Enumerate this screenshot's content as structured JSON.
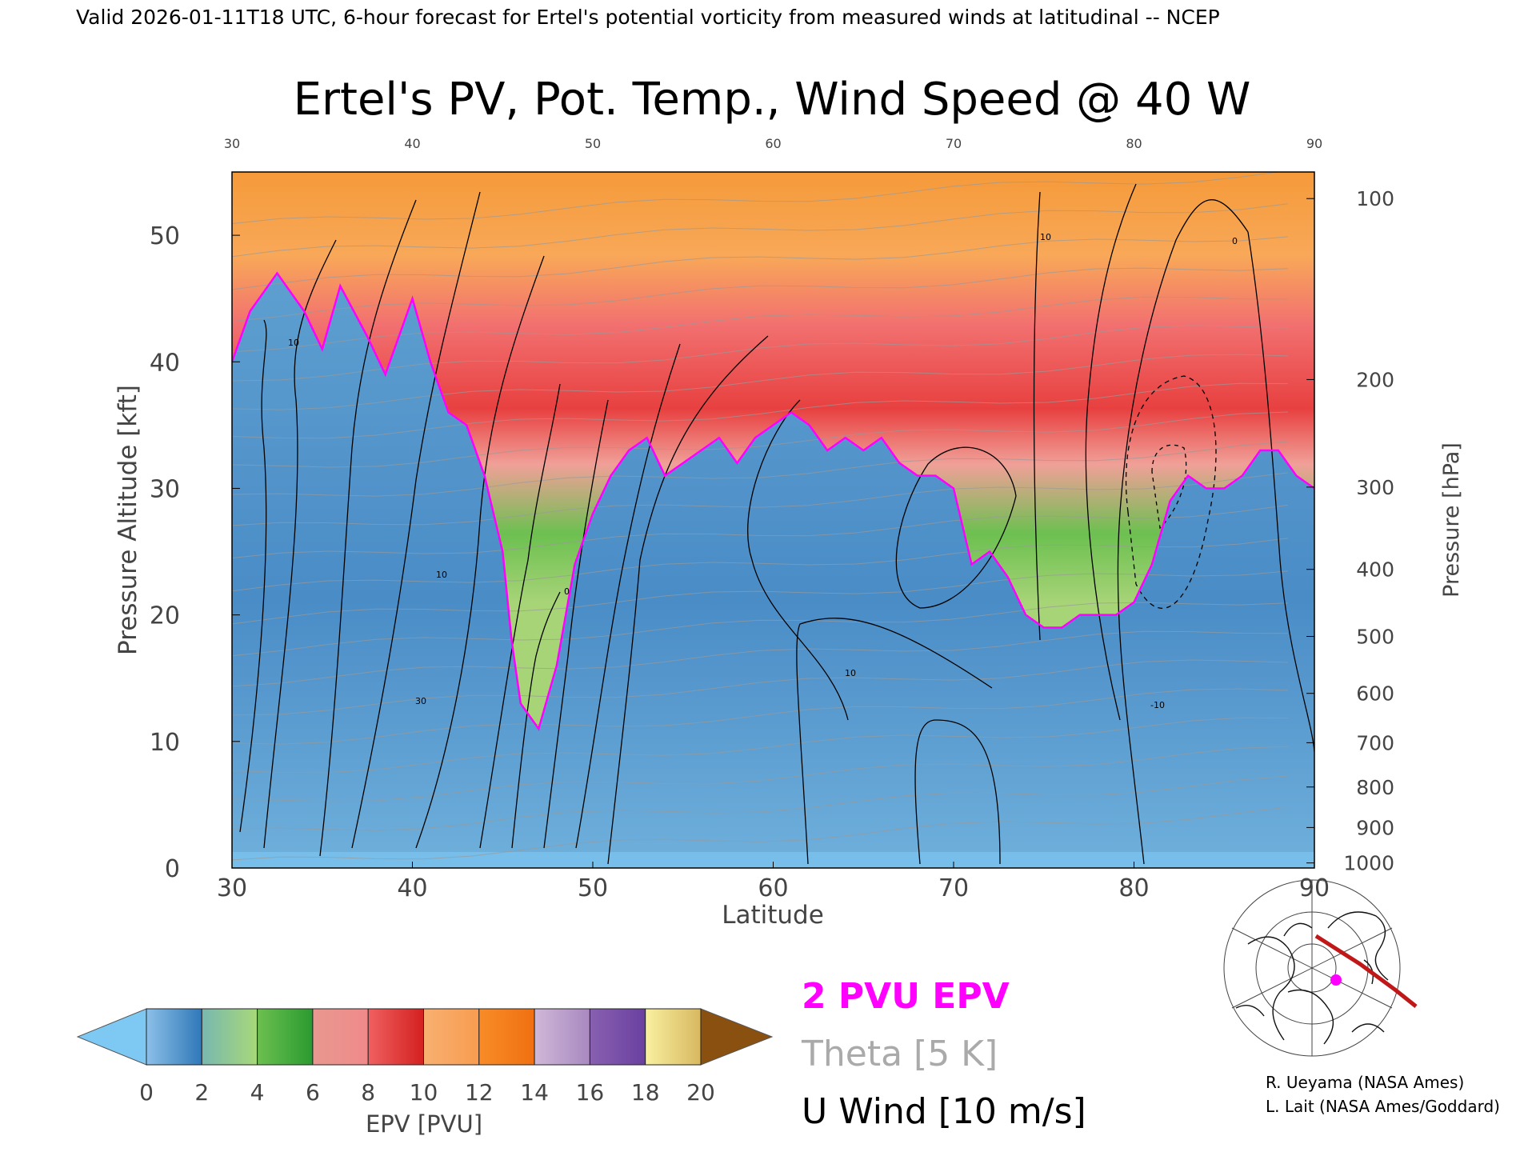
{
  "header": {
    "valid_line": "Valid 2026-01-11T18 UTC, 6-hour forecast for Ertel's potential vorticity from measured winds at latitudinal -- NCEP"
  },
  "chart_data": {
    "type": "heatmap",
    "title": "Ertel's PV, Pot. Temp., Wind Speed @ 40 W",
    "xlabel": "Latitude",
    "ylabel": "Pressure Altitude [kft]",
    "y2label": "Pressure [hPa]",
    "xlim": [
      30,
      90
    ],
    "ylim": [
      0,
      55
    ],
    "x_ticks": [
      "30",
      "40",
      "50",
      "60",
      "70",
      "80",
      "90"
    ],
    "y_ticks": [
      "0",
      "10",
      "20",
      "30",
      "40",
      "50"
    ],
    "pressure_ticks": [
      {
        "label": "100",
        "kft": 52.9
      },
      {
        "label": "200",
        "kft": 38.6
      },
      {
        "label": "300",
        "kft": 30.1
      },
      {
        "label": "400",
        "kft": 23.6
      },
      {
        "label": "500",
        "kft": 18.3
      },
      {
        "label": "600",
        "kft": 13.8
      },
      {
        "label": "700",
        "kft": 9.9
      },
      {
        "label": "800",
        "kft": 6.4
      },
      {
        "label": "900",
        "kft": 3.2
      },
      {
        "label": "1000",
        "kft": 0.4
      }
    ],
    "grid": false,
    "pv_2pvu_altitude_kft": [
      {
        "lat": 30,
        "kft": 40
      },
      {
        "lat": 31,
        "kft": 44
      },
      {
        "lat": 32.5,
        "kft": 47
      },
      {
        "lat": 34,
        "kft": 44
      },
      {
        "lat": 35,
        "kft": 41
      },
      {
        "lat": 36,
        "kft": 46
      },
      {
        "lat": 37.5,
        "kft": 42
      },
      {
        "lat": 38.5,
        "kft": 39
      },
      {
        "lat": 40,
        "kft": 45
      },
      {
        "lat": 41,
        "kft": 40
      },
      {
        "lat": 42,
        "kft": 36
      },
      {
        "lat": 43,
        "kft": 35
      },
      {
        "lat": 44,
        "kft": 31
      },
      {
        "lat": 45,
        "kft": 25
      },
      {
        "lat": 45.5,
        "kft": 18
      },
      {
        "lat": 46,
        "kft": 13
      },
      {
        "lat": 47,
        "kft": 11
      },
      {
        "lat": 48,
        "kft": 16
      },
      {
        "lat": 49,
        "kft": 24
      },
      {
        "lat": 50,
        "kft": 28
      },
      {
        "lat": 51,
        "kft": 31
      },
      {
        "lat": 52,
        "kft": 33
      },
      {
        "lat": 53,
        "kft": 34
      },
      {
        "lat": 54,
        "kft": 31
      },
      {
        "lat": 55,
        "kft": 32
      },
      {
        "lat": 56,
        "kft": 33
      },
      {
        "lat": 57,
        "kft": 34
      },
      {
        "lat": 58,
        "kft": 32
      },
      {
        "lat": 59,
        "kft": 34
      },
      {
        "lat": 60,
        "kft": 35
      },
      {
        "lat": 61,
        "kft": 36
      },
      {
        "lat": 62,
        "kft": 35
      },
      {
        "lat": 63,
        "kft": 33
      },
      {
        "lat": 64,
        "kft": 34
      },
      {
        "lat": 65,
        "kft": 33
      },
      {
        "lat": 66,
        "kft": 34
      },
      {
        "lat": 67,
        "kft": 32
      },
      {
        "lat": 68,
        "kft": 31
      },
      {
        "lat": 69,
        "kft": 31
      },
      {
        "lat": 70,
        "kft": 30
      },
      {
        "lat": 71,
        "kft": 24
      },
      {
        "lat": 72,
        "kft": 25
      },
      {
        "lat": 73,
        "kft": 23
      },
      {
        "lat": 74,
        "kft": 20
      },
      {
        "lat": 75,
        "kft": 19
      },
      {
        "lat": 76,
        "kft": 19
      },
      {
        "lat": 77,
        "kft": 20
      },
      {
        "lat": 78,
        "kft": 20
      },
      {
        "lat": 79,
        "kft": 20
      },
      {
        "lat": 80,
        "kft": 21
      },
      {
        "lat": 81,
        "kft": 24
      },
      {
        "lat": 82,
        "kft": 29
      },
      {
        "lat": 83,
        "kft": 31
      },
      {
        "lat": 84,
        "kft": 30
      },
      {
        "lat": 85,
        "kft": 30
      },
      {
        "lat": 86,
        "kft": 31
      },
      {
        "lat": 87,
        "kft": 33
      },
      {
        "lat": 88,
        "kft": 33
      },
      {
        "lat": 89,
        "kft": 31
      },
      {
        "lat": 90,
        "kft": 30
      }
    ],
    "colorbar": {
      "label": "EPV [PVU]",
      "ticks": [
        "0",
        "2",
        "4",
        "6",
        "8",
        "10",
        "12",
        "14",
        "16",
        "18",
        "20"
      ],
      "segments": [
        {
          "from": 0,
          "to": 2,
          "colors": [
            "#8cc0e8",
            "#2f78b8"
          ]
        },
        {
          "from": 2,
          "to": 4,
          "colors": [
            "#78b8b0",
            "#a8d878"
          ]
        },
        {
          "from": 4,
          "to": 6,
          "colors": [
            "#6cc050",
            "#2a9a30"
          ]
        },
        {
          "from": 6,
          "to": 8,
          "colors": [
            "#e89890",
            "#f08a8a"
          ]
        },
        {
          "from": 8,
          "to": 10,
          "colors": [
            "#f06060",
            "#d42020"
          ]
        },
        {
          "from": 10,
          "to": 12,
          "colors": [
            "#f8b070",
            "#f89c50"
          ]
        },
        {
          "from": 12,
          "to": 14,
          "colors": [
            "#f88c28",
            "#f07010"
          ]
        },
        {
          "from": 14,
          "to": 16,
          "colors": [
            "#d0b8d8",
            "#a888c0"
          ]
        },
        {
          "from": 16,
          "to": 18,
          "colors": [
            "#8860b0",
            "#6a40a0"
          ]
        },
        {
          "from": 18,
          "to": 20,
          "colors": [
            "#f8f0a0",
            "#d8b860"
          ]
        }
      ],
      "under_color": "#7ec8f4",
      "over_color": "#8a5010"
    },
    "legend": {
      "pv_label": "2 PVU EPV",
      "pv_color": "#ff00ff",
      "theta_label": "Theta [5 K]",
      "theta_color": "#aaaaaa",
      "wind_label": "U Wind [10 m/s]",
      "wind_color": "#000000"
    },
    "contour_labels": [
      "10",
      "0",
      "30",
      "10",
      "10",
      "-10",
      "10",
      "0"
    ]
  },
  "credits": {
    "line1": "R. Ueyama (NASA Ames)",
    "line2": "L. Lait (NASA Ames/Goddard)"
  },
  "colors": {
    "pv_line": "#ff00ff",
    "wind_contour": "#000000",
    "theta": "#9a9a9a",
    "track": "#c01818",
    "marker": "#ff00ff"
  }
}
